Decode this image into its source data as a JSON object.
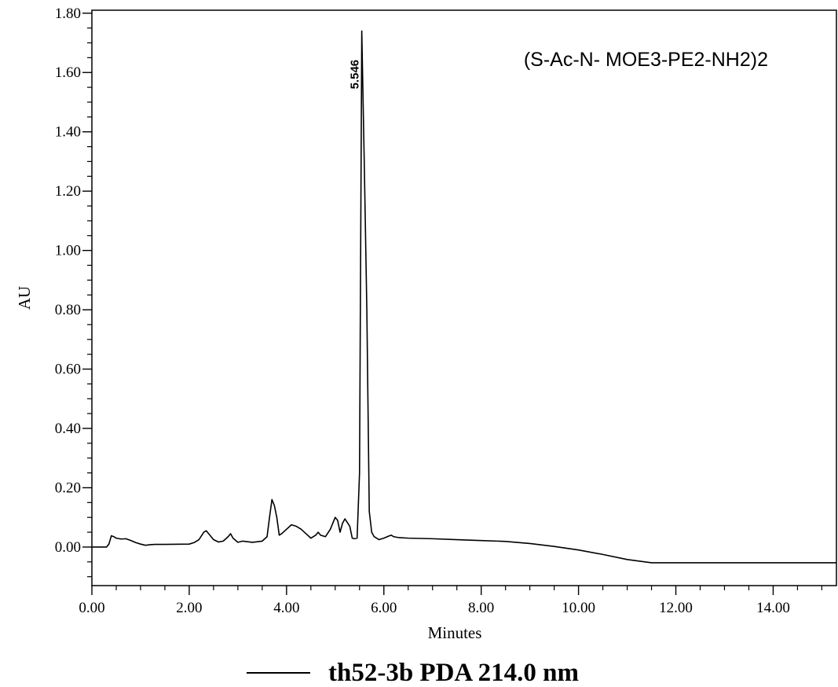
{
  "chart_data": {
    "type": "line",
    "title": "",
    "xlabel": "Minutes",
    "ylabel": "AU",
    "xlim": [
      0.0,
      15.3
    ],
    "ylim": [
      -0.13,
      1.81
    ],
    "x_major_ticks": [
      0.0,
      2.0,
      4.0,
      6.0,
      8.0,
      10.0,
      12.0,
      14.0
    ],
    "x_tick_labels": [
      "0.00",
      "2.00",
      "4.00",
      "6.00",
      "8.00",
      "10.00",
      "12.00",
      "14.00"
    ],
    "x_minor_step": 0.5,
    "y_major_ticks": [
      0.0,
      0.2,
      0.4,
      0.6,
      0.8,
      1.0,
      1.2,
      1.4,
      1.6,
      1.8
    ],
    "y_tick_labels": [
      "0.00",
      "0.20",
      "0.40",
      "0.60",
      "0.80",
      "1.00",
      "1.20",
      "1.40",
      "1.60",
      "1.80"
    ],
    "y_minor_step": 0.05,
    "grid": false,
    "line_color": "#000000",
    "legend": {
      "placement": "bottom-center",
      "entries": [
        {
          "label": "th52-3b  PDA 214.0 nm"
        }
      ]
    },
    "annotations": [
      {
        "text": "(S-Ac-N- MOE3-PE2-NH2)2",
        "placement": "top-right"
      }
    ],
    "peak_labels": [
      {
        "text": "5.546",
        "x": 5.546,
        "y": 1.65
      }
    ],
    "series": [
      {
        "x": [
          0.0,
          0.3,
          0.35,
          0.4,
          0.45,
          0.5,
          0.6,
          0.7,
          0.8,
          0.9,
          1.0,
          1.1,
          1.2,
          1.3,
          1.5,
          2.0,
          2.1,
          2.2,
          2.3,
          2.35,
          2.4,
          2.5,
          2.6,
          2.7,
          2.8,
          2.85,
          2.9,
          3.0,
          3.1,
          3.2,
          3.3,
          3.4,
          3.5,
          3.6,
          3.65,
          3.7,
          3.75,
          3.8,
          3.85,
          3.9,
          4.0,
          4.1,
          4.2,
          4.3,
          4.4,
          4.5,
          4.6,
          4.65,
          4.7,
          4.8,
          4.9,
          5.0,
          5.05,
          5.1,
          5.15,
          5.2,
          5.3,
          5.35,
          5.4,
          5.45,
          5.5,
          5.546,
          5.6,
          5.65,
          5.7,
          5.75,
          5.8,
          5.9,
          6.0,
          6.1,
          6.15,
          6.2,
          6.3,
          6.5,
          7.0,
          7.5,
          8.0,
          8.5,
          9.0,
          9.5,
          10.0,
          10.5,
          11.0,
          11.5,
          12.0,
          12.5,
          13.0,
          13.5,
          14.0,
          14.5,
          15.0,
          15.3
        ],
        "y": [
          0.0,
          0.0,
          0.01,
          0.038,
          0.035,
          0.03,
          0.027,
          0.028,
          0.022,
          0.015,
          0.01,
          0.006,
          0.008,
          0.009,
          0.009,
          0.01,
          0.015,
          0.025,
          0.05,
          0.055,
          0.045,
          0.025,
          0.017,
          0.02,
          0.035,
          0.045,
          0.03,
          0.016,
          0.02,
          0.018,
          0.016,
          0.018,
          0.02,
          0.035,
          0.1,
          0.16,
          0.14,
          0.1,
          0.04,
          0.045,
          0.06,
          0.075,
          0.07,
          0.06,
          0.045,
          0.03,
          0.04,
          0.05,
          0.04,
          0.035,
          0.06,
          0.1,
          0.09,
          0.05,
          0.08,
          0.095,
          0.07,
          0.03,
          0.028,
          0.03,
          0.25,
          1.74,
          1.27,
          0.8,
          0.12,
          0.05,
          0.035,
          0.025,
          0.03,
          0.037,
          0.04,
          0.035,
          0.032,
          0.03,
          0.028,
          0.025,
          0.022,
          0.019,
          0.012,
          0.002,
          -0.01,
          -0.025,
          -0.042,
          -0.053,
          -0.053,
          -0.053,
          -0.053,
          -0.053,
          -0.053,
          -0.053,
          -0.053,
          -0.053
        ]
      }
    ]
  }
}
